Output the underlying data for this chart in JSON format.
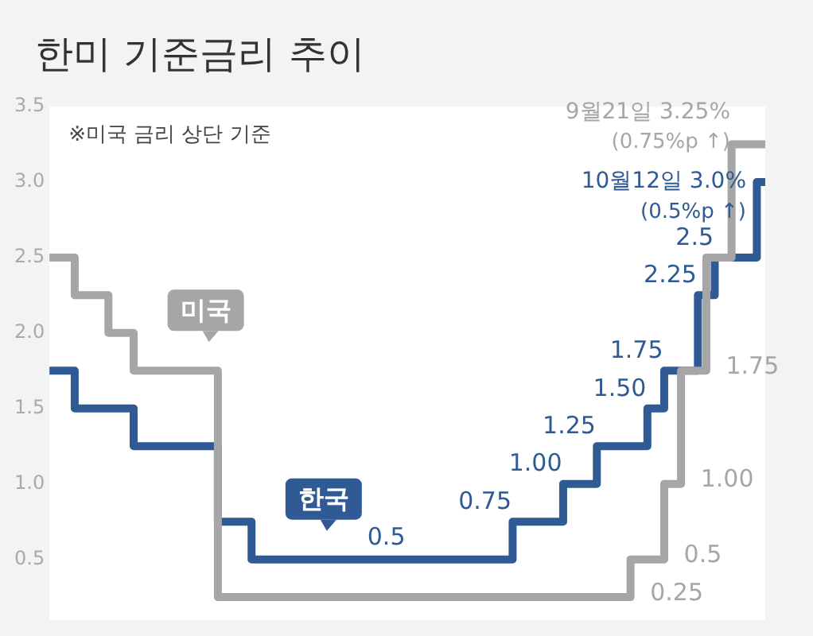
{
  "chart_data": {
    "type": "step",
    "title": "한미 기준금리 추이",
    "categories": [
      null,
      null,
      null,
      null,
      null,
      null,
      null,
      null,
      null,
      null,
      null,
      null,
      null,
      null,
      null,
      null,
      null,
      null,
      null,
      null,
      null,
      null,
      null,
      null,
      null,
      null,
      null,
      null,
      null,
      null,
      null,
      null,
      null,
      null,
      null,
      null,
      null,
      null,
      null,
      null,
      null,
      null,
      null,
      null,
      null,
      null,
      null,
      null,
      null,
      null,
      null,
      null,
      null,
      null,
      null,
      null,
      null,
      null,
      null,
      null,
      null,
      null,
      null,
      null,
      null,
      null,
      null,
      null,
      null,
      null,
      null,
      null,
      null,
      null,
      null,
      null,
      null,
      null,
      null,
      null,
      null,
      null,
      null,
      null,
      null,
      null
    ],
    "ylim": [
      0.1,
      3.5
    ],
    "yticks": [
      {
        "value": 3.5,
        "label": "3.5"
      },
      {
        "value": 3.0,
        "label": "3.0"
      },
      {
        "value": 2.5,
        "label": "2.5"
      },
      {
        "value": 2.0,
        "label": "2.0"
      },
      {
        "value": 1.5,
        "label": "1.5"
      },
      {
        "value": 1.0,
        "label": "1.0"
      },
      {
        "value": 0.5,
        "label": "0.5"
      }
    ],
    "tick_labels": "y",
    "legend": false,
    "marker": "none",
    "line_style": "solid",
    "series": [
      {
        "name": "미국",
        "color": "#a6a6a6",
        "values": [
          2.5,
          2.5,
          2.5,
          2.5,
          2.25,
          2.25,
          2.25,
          2.25,
          2.0,
          2.0,
          2.0,
          1.75,
          1.75,
          1.75,
          1.75,
          1.75,
          1.75,
          1.75,
          1.75,
          1.75,
          1.75,
          0.25,
          0.25,
          0.25,
          0.25,
          0.25,
          0.25,
          0.25,
          0.25,
          0.25,
          0.25,
          0.25,
          0.25,
          0.25,
          0.25,
          0.25,
          0.25,
          0.25,
          0.25,
          0.25,
          0.25,
          0.25,
          0.25,
          0.25,
          0.25,
          0.25,
          0.25,
          0.25,
          0.25,
          0.25,
          0.25,
          0.25,
          0.25,
          0.25,
          0.25,
          0.25,
          0.25,
          0.25,
          0.25,
          0.25,
          0.25,
          0.25,
          0.25,
          0.25,
          0.25,
          0.25,
          0.25,
          0.25,
          0.25,
          0.25,
          0.5,
          0.5,
          0.5,
          0.5,
          1.0,
          1.0,
          1.75,
          1.75,
          1.75,
          2.5,
          2.5,
          2.5,
          3.25,
          3.25,
          3.25,
          3.25
        ],
        "value_labels": [
          null,
          null,
          null,
          null,
          null,
          null,
          null,
          null,
          null,
          null,
          null,
          null,
          null,
          null,
          null,
          null,
          null,
          null,
          null,
          null,
          null,
          null,
          null,
          null,
          null,
          null,
          null,
          null,
          null,
          null,
          null,
          null,
          null,
          null,
          null,
          null,
          null,
          null,
          null,
          null,
          null,
          null,
          null,
          null,
          null,
          null,
          null,
          null,
          null,
          null,
          null,
          null,
          null,
          null,
          null,
          null,
          null,
          null,
          null,
          null,
          null,
          null,
          null,
          null,
          null,
          null,
          null,
          null,
          null,
          "0.25",
          null,
          null,
          null,
          "0.5",
          null,
          "1.00",
          null,
          null,
          "1.75",
          null,
          null,
          null,
          null,
          null,
          null,
          null
        ]
      },
      {
        "name": "한국",
        "color": "#2f5a93",
        "values": [
          1.75,
          1.75,
          1.75,
          1.75,
          1.5,
          1.5,
          1.5,
          1.5,
          1.5,
          1.5,
          1.5,
          1.25,
          1.25,
          1.25,
          1.25,
          1.25,
          1.25,
          1.25,
          1.25,
          1.25,
          1.25,
          0.75,
          0.75,
          0.75,
          0.75,
          0.5,
          0.5,
          0.5,
          0.5,
          0.5,
          0.5,
          0.5,
          0.5,
          0.5,
          0.5,
          0.5,
          0.5,
          0.5,
          0.5,
          0.5,
          0.5,
          0.5,
          0.5,
          0.5,
          0.5,
          0.5,
          0.5,
          0.5,
          0.5,
          0.5,
          0.5,
          0.5,
          0.5,
          0.5,
          0.5,
          0.5,
          0.75,
          0.75,
          0.75,
          0.75,
          0.75,
          0.75,
          1.0,
          1.0,
          1.0,
          1.0,
          1.25,
          1.25,
          1.25,
          1.25,
          1.25,
          1.25,
          1.5,
          1.5,
          1.75,
          1.75,
          1.75,
          1.75,
          2.25,
          2.25,
          2.5,
          2.5,
          2.5,
          2.5,
          2.5,
          3.0
        ],
        "value_labels": [
          null,
          null,
          null,
          null,
          null,
          null,
          null,
          null,
          null,
          null,
          null,
          null,
          null,
          null,
          null,
          null,
          null,
          null,
          null,
          null,
          null,
          null,
          null,
          null,
          null,
          null,
          null,
          null,
          null,
          null,
          null,
          null,
          null,
          null,
          null,
          null,
          null,
          null,
          null,
          null,
          "0.5",
          null,
          null,
          null,
          null,
          null,
          null,
          null,
          null,
          null,
          null,
          null,
          null,
          null,
          null,
          null,
          "0.75",
          null,
          null,
          null,
          null,
          null,
          "1.00",
          null,
          null,
          null,
          "1.25",
          null,
          null,
          null,
          null,
          null,
          "1.50",
          null,
          "1.75",
          null,
          null,
          null,
          "2.25",
          null,
          "2.5",
          null,
          null,
          null,
          null,
          null
        ]
      }
    ],
    "annotations": [
      "※미국 금리 상단 기준",
      "9월21일 3.25%\n(0.75%p ↑)",
      "10월12일 3.0%\n(0.5%p ↑)"
    ]
  }
}
